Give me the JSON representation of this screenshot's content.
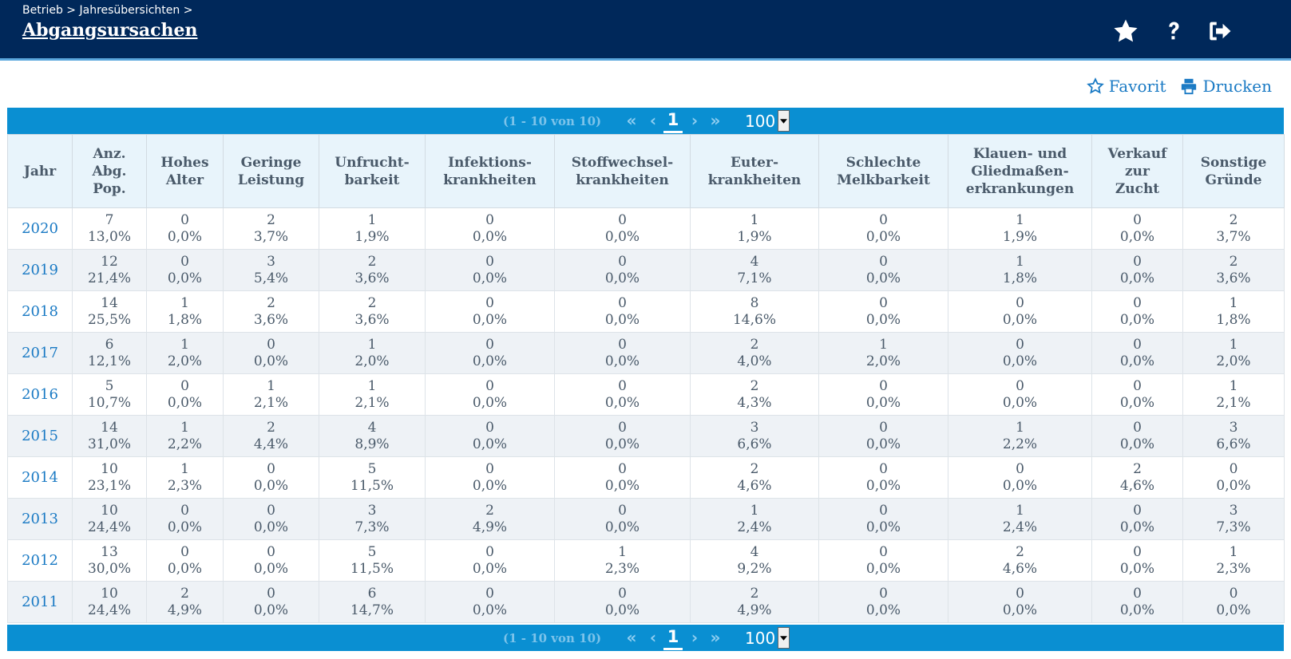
{
  "header": {
    "breadcrumb": "Betrieb > Jahresübersichten >",
    "title": "Abgangsursachen",
    "icons": [
      "star-icon",
      "help-icon",
      "logout-icon"
    ]
  },
  "actions": {
    "favorit_label": "Favorit",
    "print_label": "Drucken"
  },
  "pager": {
    "info": "(1 - 10 von 10)",
    "first": "«",
    "prev": "‹",
    "current": "1",
    "next": "›",
    "last": "»",
    "page_size": "100"
  },
  "colors": {
    "header_bg": "#00285a",
    "pager_bg": "#0a8fd2",
    "link": "#1a7ac4",
    "row_alt": "#eef2f6",
    "th_bg": "#e8f4fb"
  },
  "table": {
    "columns": [
      "Jahr",
      "Anz.\nAbg.\nPop.",
      "Hohes\nAlter",
      "Geringe\nLeistung",
      "Unfrucht-\nbarkeit",
      "Infektions-\nkrankheiten",
      "Stoffwechsel-\nkrankheiten",
      "Euter-\nkrankheiten",
      "Schlechte\nMelkbarkeit",
      "Klauen- und\nGliedmaßen-\nerkrankungen",
      "Verkauf\nzur\nZucht",
      "Sonstige\nGründe"
    ],
    "rows": [
      {
        "year": "2020",
        "cells": [
          [
            "7",
            "13,0%"
          ],
          [
            "0",
            "0,0%"
          ],
          [
            "2",
            "3,7%"
          ],
          [
            "1",
            "1,9%"
          ],
          [
            "0",
            "0,0%"
          ],
          [
            "0",
            "0,0%"
          ],
          [
            "1",
            "1,9%"
          ],
          [
            "0",
            "0,0%"
          ],
          [
            "1",
            "1,9%"
          ],
          [
            "0",
            "0,0%"
          ],
          [
            "2",
            "3,7%"
          ]
        ]
      },
      {
        "year": "2019",
        "cells": [
          [
            "12",
            "21,4%"
          ],
          [
            "0",
            "0,0%"
          ],
          [
            "3",
            "5,4%"
          ],
          [
            "2",
            "3,6%"
          ],
          [
            "0",
            "0,0%"
          ],
          [
            "0",
            "0,0%"
          ],
          [
            "4",
            "7,1%"
          ],
          [
            "0",
            "0,0%"
          ],
          [
            "1",
            "1,8%"
          ],
          [
            "0",
            "0,0%"
          ],
          [
            "2",
            "3,6%"
          ]
        ]
      },
      {
        "year": "2018",
        "cells": [
          [
            "14",
            "25,5%"
          ],
          [
            "1",
            "1,8%"
          ],
          [
            "2",
            "3,6%"
          ],
          [
            "2",
            "3,6%"
          ],
          [
            "0",
            "0,0%"
          ],
          [
            "0",
            "0,0%"
          ],
          [
            "8",
            "14,6%"
          ],
          [
            "0",
            "0,0%"
          ],
          [
            "0",
            "0,0%"
          ],
          [
            "0",
            "0,0%"
          ],
          [
            "1",
            "1,8%"
          ]
        ]
      },
      {
        "year": "2017",
        "cells": [
          [
            "6",
            "12,1%"
          ],
          [
            "1",
            "2,0%"
          ],
          [
            "0",
            "0,0%"
          ],
          [
            "1",
            "2,0%"
          ],
          [
            "0",
            "0,0%"
          ],
          [
            "0",
            "0,0%"
          ],
          [
            "2",
            "4,0%"
          ],
          [
            "1",
            "2,0%"
          ],
          [
            "0",
            "0,0%"
          ],
          [
            "0",
            "0,0%"
          ],
          [
            "1",
            "2,0%"
          ]
        ]
      },
      {
        "year": "2016",
        "cells": [
          [
            "5",
            "10,7%"
          ],
          [
            "0",
            "0,0%"
          ],
          [
            "1",
            "2,1%"
          ],
          [
            "1",
            "2,1%"
          ],
          [
            "0",
            "0,0%"
          ],
          [
            "0",
            "0,0%"
          ],
          [
            "2",
            "4,3%"
          ],
          [
            "0",
            "0,0%"
          ],
          [
            "0",
            "0,0%"
          ],
          [
            "0",
            "0,0%"
          ],
          [
            "1",
            "2,1%"
          ]
        ]
      },
      {
        "year": "2015",
        "cells": [
          [
            "14",
            "31,0%"
          ],
          [
            "1",
            "2,2%"
          ],
          [
            "2",
            "4,4%"
          ],
          [
            "4",
            "8,9%"
          ],
          [
            "0",
            "0,0%"
          ],
          [
            "0",
            "0,0%"
          ],
          [
            "3",
            "6,6%"
          ],
          [
            "0",
            "0,0%"
          ],
          [
            "1",
            "2,2%"
          ],
          [
            "0",
            "0,0%"
          ],
          [
            "3",
            "6,6%"
          ]
        ]
      },
      {
        "year": "2014",
        "cells": [
          [
            "10",
            "23,1%"
          ],
          [
            "1",
            "2,3%"
          ],
          [
            "0",
            "0,0%"
          ],
          [
            "5",
            "11,5%"
          ],
          [
            "0",
            "0,0%"
          ],
          [
            "0",
            "0,0%"
          ],
          [
            "2",
            "4,6%"
          ],
          [
            "0",
            "0,0%"
          ],
          [
            "0",
            "0,0%"
          ],
          [
            "2",
            "4,6%"
          ],
          [
            "0",
            "0,0%"
          ]
        ]
      },
      {
        "year": "2013",
        "cells": [
          [
            "10",
            "24,4%"
          ],
          [
            "0",
            "0,0%"
          ],
          [
            "0",
            "0,0%"
          ],
          [
            "3",
            "7,3%"
          ],
          [
            "2",
            "4,9%"
          ],
          [
            "0",
            "0,0%"
          ],
          [
            "1",
            "2,4%"
          ],
          [
            "0",
            "0,0%"
          ],
          [
            "1",
            "2,4%"
          ],
          [
            "0",
            "0,0%"
          ],
          [
            "3",
            "7,3%"
          ]
        ]
      },
      {
        "year": "2012",
        "cells": [
          [
            "13",
            "30,0%"
          ],
          [
            "0",
            "0,0%"
          ],
          [
            "0",
            "0,0%"
          ],
          [
            "5",
            "11,5%"
          ],
          [
            "0",
            "0,0%"
          ],
          [
            "1",
            "2,3%"
          ],
          [
            "4",
            "9,2%"
          ],
          [
            "0",
            "0,0%"
          ],
          [
            "2",
            "4,6%"
          ],
          [
            "0",
            "0,0%"
          ],
          [
            "1",
            "2,3%"
          ]
        ]
      },
      {
        "year": "2011",
        "cells": [
          [
            "10",
            "24,4%"
          ],
          [
            "2",
            "4,9%"
          ],
          [
            "0",
            "0,0%"
          ],
          [
            "6",
            "14,7%"
          ],
          [
            "0",
            "0,0%"
          ],
          [
            "0",
            "0,0%"
          ],
          [
            "2",
            "4,9%"
          ],
          [
            "0",
            "0,0%"
          ],
          [
            "0",
            "0,0%"
          ],
          [
            "0",
            "0,0%"
          ],
          [
            "0",
            "0,0%"
          ]
        ]
      }
    ]
  }
}
